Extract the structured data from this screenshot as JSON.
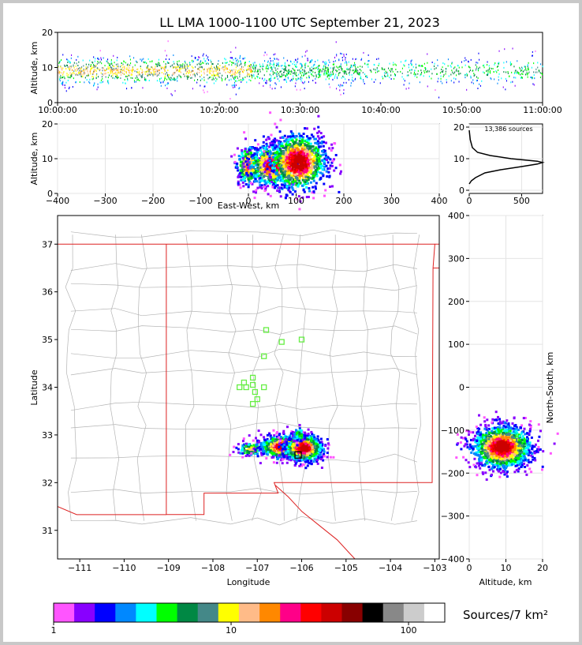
{
  "title": "LL LMA 1000-1100 UTC September 21, 2023",
  "time_panel": {
    "ylabel": "Altitude, km",
    "xticks": [
      "10:00:00",
      "10:10:00",
      "10:20:00",
      "10:30:00",
      "10:40:00",
      "10:50:00",
      "11:00:00"
    ],
    "yticks": [
      "0",
      "10",
      "20"
    ]
  },
  "ew_panel": {
    "ylabel": "Altitude, km",
    "xlabel": "East-West, km",
    "xticks": [
      "−400",
      "−300",
      "−200",
      "−100",
      "0",
      "100",
      "200",
      "300",
      "400"
    ],
    "yticks": [
      "0",
      "10",
      "20"
    ]
  },
  "hist_panel": {
    "annotation": "13,386 sources",
    "xticks": [
      "0",
      "500"
    ],
    "yticks": [
      "0",
      "10",
      "20"
    ]
  },
  "map_panel": {
    "ylabel": "Latitude",
    "xlabel": "Longitude",
    "xticks": [
      "−111",
      "−110",
      "−109",
      "−108",
      "−107",
      "−106",
      "−105",
      "−104",
      "−103"
    ],
    "yticks": [
      "31",
      "32",
      "33",
      "34",
      "35",
      "36",
      "37"
    ]
  },
  "ns_panel": {
    "ylabel": "North-South, km",
    "xlabel": "Altitude, km",
    "xticks": [
      "0",
      "10",
      "20"
    ],
    "yticks": [
      "−400",
      "−300",
      "−200",
      "−100",
      "0",
      "100",
      "200",
      "300",
      "400"
    ]
  },
  "colorbar": {
    "label": "Sources/7 km²",
    "ticks": [
      "1",
      "10",
      "100"
    ],
    "colors": [
      "#ff55ff",
      "#8800ff",
      "#0000ff",
      "#0088ff",
      "#00ffff",
      "#00ff00",
      "#008844",
      "#448888",
      "#ffff00",
      "#ffbb88",
      "#ff8800",
      "#ff0088",
      "#ff0000",
      "#cc0000",
      "#880000",
      "#000000",
      "#888888",
      "#cccccc",
      "#ffffff"
    ]
  },
  "chart_data": [
    {
      "type": "scatter",
      "name": "time-height",
      "xlabel": "",
      "ylabel": "Altitude, km",
      "xlim": [
        "10:00:00",
        "11:00:00"
      ],
      "ylim": [
        0,
        20
      ],
      "description_values": {
        "typical_altitude_km": 9,
        "range_km": [
          2,
          19
        ]
      }
    },
    {
      "type": "heatmap",
      "name": "east-west-altitude",
      "xlabel": "East-West, km",
      "ylabel": "Altitude, km",
      "xlim": [
        -400,
        400
      ],
      "ylim": [
        0,
        20
      ],
      "clusters": [
        {
          "x": 0,
          "y": 8,
          "spread_x": 12,
          "spread_y": 3
        },
        {
          "x": 50,
          "y": 8,
          "spread_x": 25,
          "spread_y": 3
        },
        {
          "x": 105,
          "y": 9,
          "spread_x": 30,
          "spread_y": 4
        }
      ]
    },
    {
      "type": "line",
      "name": "altitude-histogram",
      "xlim": [
        0,
        700
      ],
      "ylim": [
        0,
        20
      ],
      "total_sources": 13386,
      "x": [
        0,
        20,
        60,
        150,
        300,
        500,
        650,
        700,
        650,
        400,
        200,
        80,
        30,
        10,
        0
      ],
      "y": [
        2,
        3,
        4,
        5.5,
        6.5,
        7.5,
        8.3,
        8.8,
        9.2,
        10,
        11,
        12,
        13.5,
        16,
        19
      ]
    },
    {
      "type": "heatmap",
      "name": "plan-view",
      "xlabel": "Longitude",
      "ylabel": "Latitude",
      "xlim": [
        -111.5,
        -102.9
      ],
      "ylim": [
        30.4,
        37.6
      ],
      "stations": [
        {
          "lon": -106.8,
          "lat": 35.2
        },
        {
          "lon": -106.45,
          "lat": 34.95
        },
        {
          "lon": -106.0,
          "lat": 35.0
        },
        {
          "lon": -106.85,
          "lat": 34.65
        },
        {
          "lon": -107.1,
          "lat": 34.2
        },
        {
          "lon": -107.3,
          "lat": 34.1
        },
        {
          "lon": -107.1,
          "lat": 34.05
        },
        {
          "lon": -107.4,
          "lat": 34.0
        },
        {
          "lon": -107.25,
          "lat": 34.0
        },
        {
          "lon": -107.05,
          "lat": 33.9
        },
        {
          "lon": -106.85,
          "lat": 34.0
        },
        {
          "lon": -107.0,
          "lat": 33.75
        },
        {
          "lon": -107.1,
          "lat": 33.65
        }
      ],
      "source_region": {
        "lon": [
          -107.4,
          -105.3
        ],
        "lat": [
          32.3,
          33.15
        ]
      }
    },
    {
      "type": "heatmap",
      "name": "north-south-altitude",
      "xlabel": "Altitude, km",
      "ylabel": "North-South, km",
      "xlim": [
        0,
        20
      ],
      "ylim": [
        -400,
        400
      ],
      "clusters": [
        {
          "x": 9,
          "y": -140,
          "spread_x": 4,
          "spread_y": 25
        }
      ]
    }
  ]
}
